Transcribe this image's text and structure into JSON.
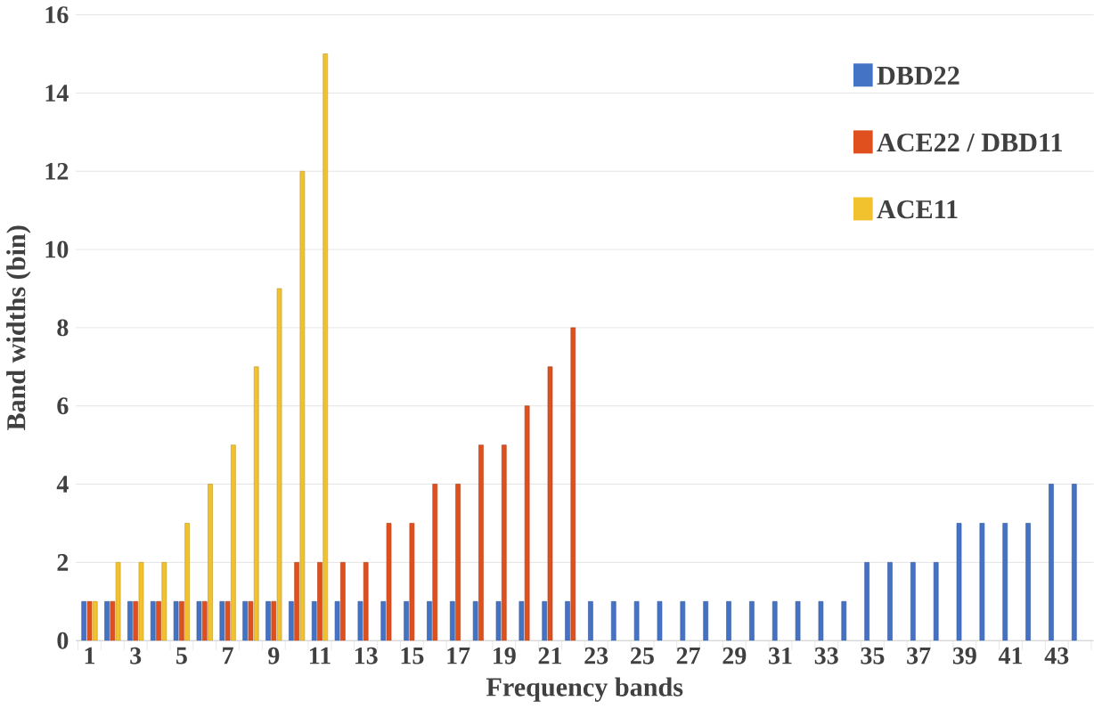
{
  "chart_data": {
    "type": "bar",
    "xlabel": "Frequency bands",
    "ylabel": "Band widths (bin)",
    "categories": [
      "1",
      null,
      "3",
      null,
      "5",
      null,
      "7",
      null,
      "9",
      null,
      "11",
      null,
      "13",
      null,
      "15",
      null,
      "17",
      null,
      "19",
      null,
      "21",
      null,
      "23",
      null,
      "25",
      null,
      "27",
      null,
      "29",
      null,
      "31",
      null,
      "33",
      null,
      "35",
      null,
      "37",
      null,
      "39",
      null,
      "41",
      null,
      "43",
      null
    ],
    "series": [
      {
        "name": "DBD22",
        "color": "#4472c4",
        "values": [
          1,
          1,
          1,
          1,
          1,
          1,
          1,
          1,
          1,
          1,
          1,
          1,
          1,
          1,
          1,
          1,
          1,
          1,
          1,
          1,
          1,
          1,
          1,
          1,
          1,
          1,
          1,
          1,
          1,
          1,
          1,
          1,
          1,
          1,
          2,
          2,
          2,
          2,
          3,
          3,
          3,
          3,
          4,
          4
        ]
      },
      {
        "name": "ACE22 / DBD11",
        "color": "#e0501e",
        "values": [
          1,
          1,
          1,
          1,
          1,
          1,
          1,
          1,
          1,
          2,
          2,
          2,
          2,
          3,
          3,
          4,
          4,
          5,
          5,
          6,
          7,
          8,
          null,
          null,
          null,
          null,
          null,
          null,
          null,
          null,
          null,
          null,
          null,
          null,
          null,
          null,
          null,
          null,
          null,
          null,
          null,
          null,
          null,
          null
        ]
      },
      {
        "name": "ACE11",
        "color": "#f2c12e",
        "values": [
          1,
          2,
          2,
          2,
          3,
          4,
          5,
          7,
          9,
          12,
          15,
          null,
          null,
          null,
          null,
          null,
          null,
          null,
          null,
          null,
          null,
          null,
          null,
          null,
          null,
          null,
          null,
          null,
          null,
          null,
          null,
          null,
          null,
          null,
          null,
          null,
          null,
          null,
          null,
          null,
          null,
          null,
          null,
          null
        ]
      }
    ],
    "ylim": [
      0,
      16
    ],
    "yticks": [
      0,
      2,
      4,
      6,
      8,
      10,
      12,
      14,
      16
    ],
    "grid": "y",
    "legend": "top right"
  }
}
